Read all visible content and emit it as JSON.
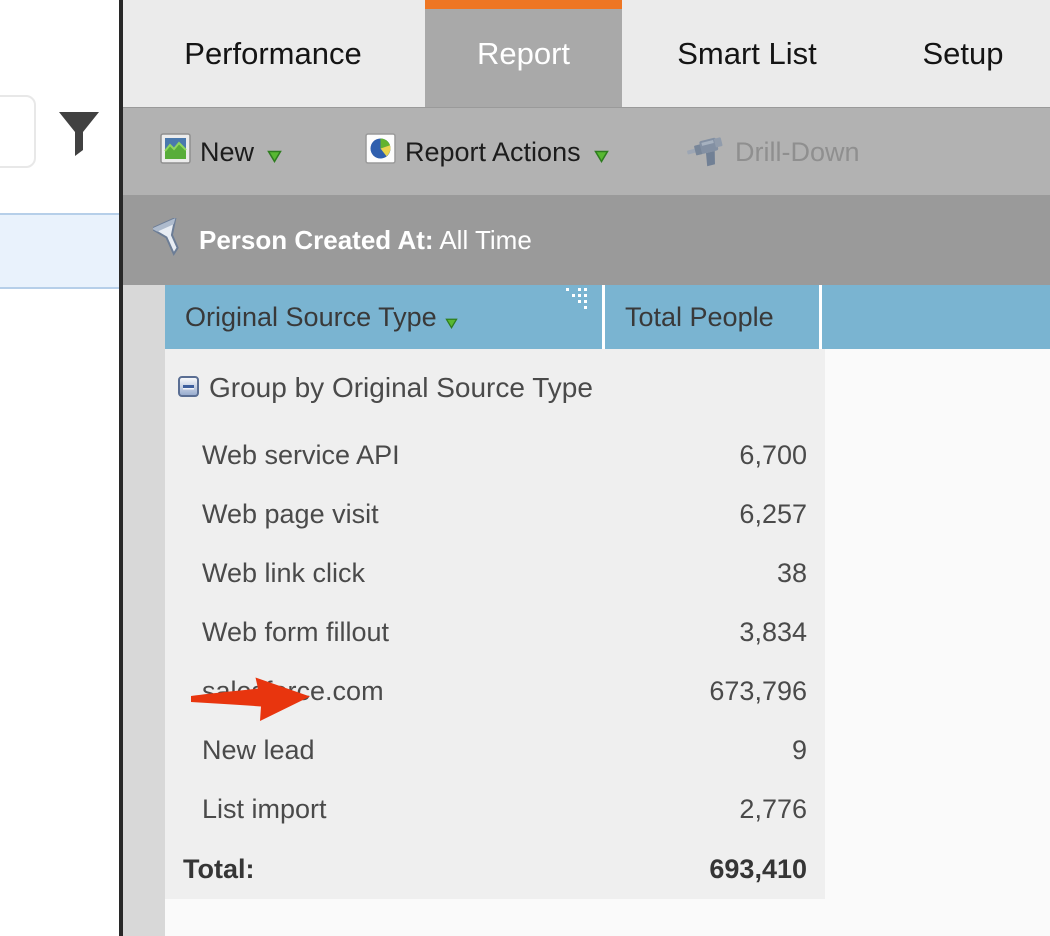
{
  "tabs": [
    {
      "label": "Performance",
      "active": false
    },
    {
      "label": "Report",
      "active": true
    },
    {
      "label": "Smart List",
      "active": false
    },
    {
      "label": "Setup",
      "active": false
    }
  ],
  "toolbar": {
    "new_label": "New",
    "report_actions_label": "Report Actions",
    "drill_down_label": "Drill-Down",
    "drill_down_enabled": false
  },
  "filter_bar": {
    "label": "Person Created At:",
    "value": "All Time"
  },
  "table": {
    "columns": [
      "Original Source Type",
      "Total People",
      ""
    ],
    "group_label": "Group by Original Source Type",
    "rows": [
      {
        "label": "Web service API",
        "value": "6,700"
      },
      {
        "label": "Web page visit",
        "value": "6,257"
      },
      {
        "label": "Web link click",
        "value": "38"
      },
      {
        "label": "Web form fillout",
        "value": "3,834"
      },
      {
        "label": "salesforce.com",
        "value": "673,796",
        "annotated": true
      },
      {
        "label": "New lead",
        "value": "9"
      },
      {
        "label": "List import",
        "value": "2,776"
      }
    ],
    "total_label": "Total:",
    "total_value": "693,410"
  },
  "colors": {
    "accent_orange": "#EE7623",
    "active_tab_gray": "#A9A9A9",
    "header_blue": "#7AB4D1",
    "body_gray": "#EFEFEF",
    "selection_blue": "#E9F2FC",
    "arrow_red": "#E8350E"
  }
}
